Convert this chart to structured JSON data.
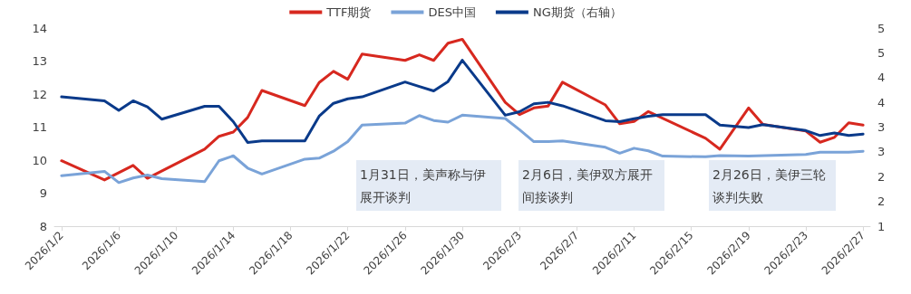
{
  "chart_data": {
    "type": "line",
    "marker": "none",
    "line_style": "solid",
    "legend": "top",
    "grid": false,
    "xlim": [
      "2026-01-01T12:00",
      "2026-02-27T12:00"
    ],
    "xticks": [
      {
        "value": "2026-01-02",
        "label": "2026/1/2"
      },
      {
        "value": "2026-01-06",
        "label": "2026/1/6"
      },
      {
        "value": "2026-01-10",
        "label": "2026/1/10"
      },
      {
        "value": "2026-01-14",
        "label": "2026/1/14"
      },
      {
        "value": "2026-01-18",
        "label": "2026/1/18"
      },
      {
        "value": "2026-01-22",
        "label": "2026/1/22"
      },
      {
        "value": "2026-01-26",
        "label": "2026/1/26"
      },
      {
        "value": "2026-01-30",
        "label": "2026/1/30"
      },
      {
        "value": "2026-02-03",
        "label": "2026/2/3"
      },
      {
        "value": "2026-02-07",
        "label": "2026/2/7"
      },
      {
        "value": "2026-02-11",
        "label": "2026/2/11"
      },
      {
        "value": "2026-02-15",
        "label": "2026/2/15"
      },
      {
        "value": "2026-02-19",
        "label": "2026/2/19"
      },
      {
        "value": "2026-02-23",
        "label": "2026/2/23"
      },
      {
        "value": "2026-02-27",
        "label": "2026/2/27"
      }
    ],
    "ylim": [
      8,
      14
    ],
    "yticks": [
      8,
      9,
      10,
      11,
      12,
      13,
      14
    ],
    "y2lim": [
      1,
      5
    ],
    "y2ticks": [
      1,
      {
        "value": 1.5,
        "label": "2"
      },
      2,
      {
        "value": 2.5,
        "label": "3"
      },
      3,
      {
        "value": 3.5,
        "label": "4"
      },
      4,
      {
        "value": 4.5,
        "label": "5"
      },
      5
    ],
    "series": [
      {
        "name": "TTF期货",
        "color": "#d7281f",
        "x": [
          "2026-01-02",
          "2026-01-05",
          "2026-01-07",
          "2026-01-08",
          "2026-01-12",
          "2026-01-13",
          "2026-01-14",
          "2026-01-15",
          "2026-01-16",
          "2026-01-19",
          "2026-01-20",
          "2026-01-21",
          "2026-01-22",
          "2026-01-23",
          "2026-01-26",
          "2026-01-27",
          "2026-01-28",
          "2026-01-29",
          "2026-01-30",
          "2026-02-02",
          "2026-02-03",
          "2026-02-04",
          "2026-02-05",
          "2026-02-06",
          "2026-02-09",
          "2026-02-10",
          "2026-02-11",
          "2026-02-12",
          "2026-02-16",
          "2026-02-17",
          "2026-02-19",
          "2026-02-20",
          "2026-02-23",
          "2026-02-24",
          "2026-02-25",
          "2026-02-26",
          "2026-02-27"
        ],
        "values": [
          9.98,
          9.4,
          9.84,
          9.45,
          10.33,
          10.72,
          10.85,
          11.29,
          12.11,
          11.65,
          12.35,
          12.69,
          12.45,
          13.21,
          13.02,
          13.19,
          13.02,
          13.54,
          13.66,
          11.75,
          11.38,
          11.58,
          11.64,
          12.36,
          11.67,
          11.1,
          11.17,
          11.47,
          10.66,
          10.33,
          11.58,
          11.08,
          10.88,
          10.54,
          10.69,
          11.13,
          11.06
        ]
      },
      {
        "name": "DES中国",
        "color": "#7aa3d8",
        "x": [
          "2026-01-02",
          "2026-01-05",
          "2026-01-06",
          "2026-01-07",
          "2026-01-08",
          "2026-01-09",
          "2026-01-12",
          "2026-01-13",
          "2026-01-14",
          "2026-01-15",
          "2026-01-16",
          "2026-01-19",
          "2026-01-20",
          "2026-01-21",
          "2026-01-22",
          "2026-01-23",
          "2026-01-26",
          "2026-01-27",
          "2026-01-28",
          "2026-01-29",
          "2026-01-30",
          "2026-02-02",
          "2026-02-03",
          "2026-02-04",
          "2026-02-05",
          "2026-02-06",
          "2026-02-09",
          "2026-02-10",
          "2026-02-11",
          "2026-02-12",
          "2026-02-13",
          "2026-02-16",
          "2026-02-17",
          "2026-02-19",
          "2026-02-23",
          "2026-02-24",
          "2026-02-26",
          "2026-02-27"
        ],
        "values": [
          9.53,
          9.66,
          9.32,
          9.46,
          9.55,
          9.44,
          9.35,
          9.98,
          10.13,
          9.76,
          9.58,
          10.03,
          10.06,
          10.27,
          10.56,
          11.06,
          11.12,
          11.35,
          11.2,
          11.15,
          11.36,
          11.26,
          10.92,
          10.56,
          10.56,
          10.58,
          10.39,
          10.21,
          10.36,
          10.28,
          10.12,
          10.1,
          10.14,
          10.12,
          10.17,
          10.24,
          10.24,
          10.27
        ]
      },
      {
        "name": "NG期货（右轴）",
        "color": "#0a3a8a",
        "axis": "y2",
        "x": [
          "2026-01-02",
          "2026-01-05",
          "2026-01-06",
          "2026-01-07",
          "2026-01-08",
          "2026-01-09",
          "2026-01-12",
          "2026-01-13",
          "2026-01-14",
          "2026-01-15",
          "2026-01-16",
          "2026-01-19",
          "2026-01-20",
          "2026-01-21",
          "2026-01-22",
          "2026-01-23",
          "2026-01-26",
          "2026-01-27",
          "2026-01-28",
          "2026-01-29",
          "2026-01-30",
          "2026-02-02",
          "2026-02-03",
          "2026-02-04",
          "2026-02-05",
          "2026-02-06",
          "2026-02-09",
          "2026-02-10",
          "2026-02-11",
          "2026-02-12",
          "2026-02-13",
          "2026-02-16",
          "2026-02-17",
          "2026-02-19",
          "2026-02-20",
          "2026-02-23",
          "2026-02-24",
          "2026-02-25",
          "2026-02-26",
          "2026-02-27"
        ],
        "values": [
          3.61,
          3.53,
          3.34,
          3.53,
          3.41,
          3.16,
          3.42,
          3.42,
          3.11,
          2.69,
          2.72,
          2.72,
          3.22,
          3.48,
          3.57,
          3.61,
          3.91,
          3.82,
          3.73,
          3.92,
          4.35,
          3.24,
          3.31,
          3.47,
          3.5,
          3.43,
          3.13,
          3.11,
          3.17,
          3.22,
          3.25,
          3.25,
          3.04,
          2.99,
          3.05,
          2.93,
          2.83,
          2.88,
          2.83,
          2.86
        ]
      }
    ],
    "annotations": [
      "1月31日，美声称与伊展开谈判",
      "2月6日，美伊双方展开间接谈判",
      "2月26日，美伊三轮谈判失败"
    ]
  }
}
